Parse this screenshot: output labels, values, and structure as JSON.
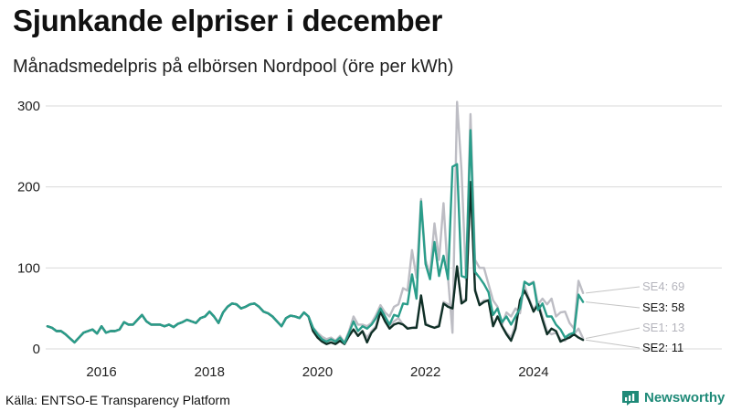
{
  "title": "Sjunkande elpriser i december",
  "subtitle": "Månadsmedelpris på elbörsen Nordpool (öre per kWh)",
  "source": "Källa: ENTSO-E Transparency Platform",
  "brand": {
    "name": "Newsworthy",
    "color": "#1f8a78"
  },
  "chart_data": {
    "type": "line",
    "title": "Sjunkande elpriser i december",
    "subtitle": "Månadsmedelpris på elbörsen Nordpool (öre per kWh)",
    "xlabel": "",
    "ylabel": "öre per kWh",
    "x_start": 2015.0,
    "x_step": 0.0833333,
    "xlim": [
      2015.0,
      2026.1
    ],
    "ylim": [
      0,
      310
    ],
    "x_ticks": [
      2016,
      2018,
      2020,
      2022,
      2024
    ],
    "y_ticks": [
      0,
      100,
      200,
      300
    ],
    "grid": true,
    "legend": "end-labels",
    "series": [
      {
        "name": "SE4",
        "end_label": "SE4: 69",
        "color": "#bdbdc4",
        "values": [
          28,
          26,
          22,
          22,
          18,
          13,
          8,
          14,
          20,
          22,
          24,
          19,
          28,
          20,
          22,
          22,
          24,
          33,
          30,
          30,
          36,
          42,
          34,
          30,
          30,
          30,
          28,
          30,
          27,
          31,
          33,
          36,
          34,
          32,
          38,
          40,
          46,
          40,
          32,
          45,
          52,
          56,
          55,
          50,
          52,
          55,
          56,
          52,
          46,
          44,
          40,
          34,
          28,
          38,
          41,
          40,
          38,
          45,
          40,
          26,
          20,
          15,
          12,
          14,
          10,
          16,
          8,
          22,
          40,
          30,
          30,
          28,
          32,
          42,
          54,
          45,
          40,
          52,
          55,
          75,
          72,
          122,
          88,
          185,
          110,
          92,
          155,
          110,
          180,
          88,
          20,
          305,
          220,
          85,
          290,
          110,
          100,
          100,
          80,
          60,
          52,
          30,
          45,
          40,
          50,
          44,
          82,
          80,
          83,
          55,
          62,
          55,
          62,
          40,
          45,
          46,
          32,
          25,
          84,
          69
        ]
      },
      {
        "name": "SE1",
        "end_label": "SE1: 13",
        "color": "#bdbdc4",
        "values": [
          28,
          26,
          22,
          22,
          18,
          13,
          8,
          14,
          20,
          22,
          24,
          19,
          28,
          20,
          22,
          22,
          24,
          33,
          30,
          30,
          36,
          42,
          34,
          30,
          30,
          30,
          28,
          30,
          27,
          31,
          33,
          36,
          34,
          32,
          38,
          40,
          46,
          40,
          32,
          45,
          52,
          56,
          55,
          50,
          52,
          55,
          56,
          52,
          46,
          44,
          40,
          34,
          28,
          38,
          41,
          40,
          38,
          45,
          40,
          22,
          14,
          9,
          6,
          8,
          6,
          10,
          6,
          16,
          24,
          16,
          22,
          14,
          22,
          28,
          46,
          35,
          28,
          34,
          38,
          30,
          26,
          26,
          28,
          66,
          32,
          28,
          26,
          30,
          58,
          55,
          52,
          100,
          58,
          62,
          206,
          75,
          55,
          60,
          60,
          30,
          40,
          28,
          20,
          14,
          30,
          55,
          78,
          62,
          48,
          58,
          40,
          22,
          18,
          20,
          12,
          10,
          16,
          18,
          25,
          13
        ]
      },
      {
        "name": "SE2",
        "end_label": "SE2: 11",
        "color": "#0f2f26",
        "values": [
          28,
          26,
          22,
          22,
          18,
          13,
          8,
          14,
          20,
          22,
          24,
          19,
          28,
          20,
          22,
          22,
          24,
          33,
          30,
          30,
          36,
          42,
          34,
          30,
          30,
          30,
          28,
          30,
          27,
          31,
          33,
          36,
          34,
          32,
          38,
          40,
          46,
          40,
          32,
          45,
          52,
          56,
          55,
          50,
          52,
          55,
          56,
          52,
          46,
          44,
          40,
          34,
          28,
          38,
          41,
          40,
          38,
          45,
          40,
          22,
          14,
          9,
          6,
          8,
          6,
          10,
          6,
          16,
          24,
          16,
          22,
          8,
          20,
          26,
          46,
          34,
          25,
          30,
          32,
          30,
          25,
          26,
          26,
          66,
          30,
          28,
          26,
          28,
          56,
          52,
          50,
          102,
          56,
          60,
          206,
          72,
          54,
          58,
          60,
          28,
          40,
          28,
          18,
          10,
          25,
          60,
          72,
          60,
          46,
          55,
          36,
          18,
          25,
          22,
          9,
          12,
          14,
          18,
          14,
          11
        ]
      },
      {
        "name": "SE3",
        "end_label": "SE3: 58",
        "color": "#2a9d8a",
        "values": [
          28,
          26,
          22,
          22,
          18,
          13,
          8,
          14,
          20,
          22,
          24,
          19,
          28,
          20,
          22,
          22,
          24,
          33,
          30,
          30,
          36,
          42,
          34,
          30,
          30,
          30,
          28,
          30,
          27,
          31,
          33,
          36,
          34,
          32,
          38,
          40,
          46,
          40,
          32,
          45,
          52,
          56,
          55,
          50,
          52,
          55,
          56,
          52,
          46,
          44,
          40,
          34,
          28,
          38,
          41,
          40,
          38,
          45,
          40,
          26,
          18,
          12,
          9,
          12,
          9,
          14,
          7,
          20,
          34,
          22,
          28,
          25,
          30,
          38,
          50,
          40,
          30,
          42,
          40,
          56,
          55,
          92,
          62,
          182,
          105,
          86,
          132,
          90,
          115,
          86,
          225,
          228,
          90,
          88,
          270,
          95,
          88,
          80,
          70,
          42,
          50,
          33,
          40,
          30,
          40,
          50,
          83,
          79,
          82,
          48,
          56,
          40,
          40,
          30,
          24,
          14,
          18,
          20,
          67,
          58
        ]
      }
    ]
  }
}
